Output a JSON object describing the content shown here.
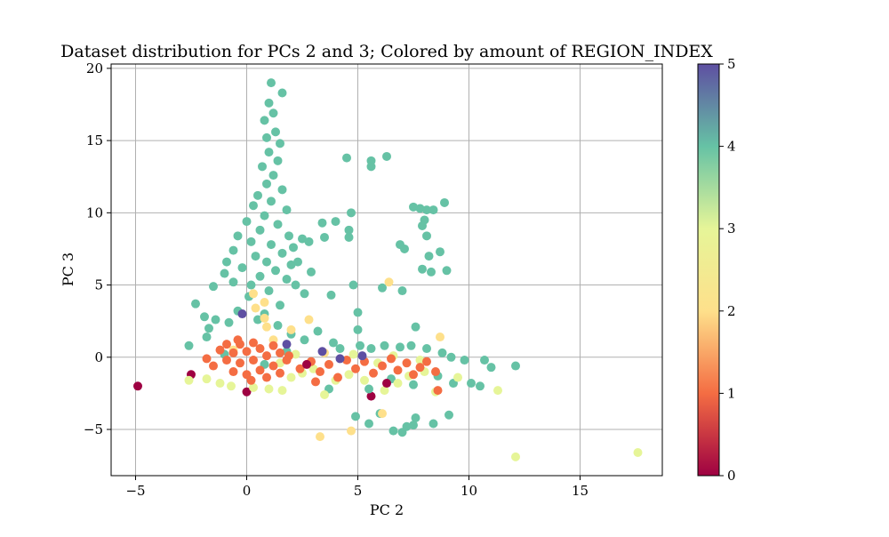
{
  "chart_data": {
    "type": "scatter",
    "title": "Dataset distribution for PCs 2 and 3; Colored by amount of REGION_INDEX",
    "xlabel": "PC 2",
    "ylabel": "PC 3",
    "xlim": [
      -6.1,
      18.7
    ],
    "ylim": [
      -8.2,
      20.3
    ],
    "xticks": [
      -5,
      0,
      5,
      10,
      15
    ],
    "yticks": [
      -5,
      0,
      5,
      10,
      15,
      20
    ],
    "grid": true,
    "colorbar": {
      "label": "",
      "range": [
        0,
        5
      ],
      "ticks": [
        0,
        1,
        2,
        3,
        4,
        5
      ],
      "colormap": "Spectral",
      "stops": [
        "#9e0142",
        "#f46d43",
        "#fee08b",
        "#e6f598",
        "#66c2a5",
        "#5e4fa2"
      ]
    },
    "points": [
      {
        "x": -4.9,
        "y": -2.0,
        "c": 0
      },
      {
        "x": 0.0,
        "y": -2.4,
        "c": 0
      },
      {
        "x": 5.6,
        "y": -2.7,
        "c": 0
      },
      {
        "x": -2.5,
        "y": -1.2,
        "c": 0
      },
      {
        "x": 1.1,
        "y": 19.0,
        "c": 4
      },
      {
        "x": 1.6,
        "y": 18.3,
        "c": 4
      },
      {
        "x": 1.0,
        "y": 17.6,
        "c": 4
      },
      {
        "x": 1.2,
        "y": 16.9,
        "c": 4
      },
      {
        "x": 0.8,
        "y": 16.4,
        "c": 4
      },
      {
        "x": 1.3,
        "y": 15.6,
        "c": 4
      },
      {
        "x": 0.9,
        "y": 15.2,
        "c": 4
      },
      {
        "x": 1.5,
        "y": 14.8,
        "c": 4
      },
      {
        "x": 1.0,
        "y": 14.2,
        "c": 4
      },
      {
        "x": 1.4,
        "y": 13.6,
        "c": 4
      },
      {
        "x": 0.7,
        "y": 13.2,
        "c": 4
      },
      {
        "x": 1.2,
        "y": 12.6,
        "c": 4
      },
      {
        "x": 0.9,
        "y": 12.0,
        "c": 4
      },
      {
        "x": 1.6,
        "y": 11.6,
        "c": 4
      },
      {
        "x": 0.5,
        "y": 11.2,
        "c": 4
      },
      {
        "x": 1.1,
        "y": 10.8,
        "c": 4
      },
      {
        "x": 0.3,
        "y": 10.5,
        "c": 4
      },
      {
        "x": 1.8,
        "y": 10.2,
        "c": 4
      },
      {
        "x": 0.8,
        "y": 9.8,
        "c": 4
      },
      {
        "x": 0.0,
        "y": 9.4,
        "c": 4
      },
      {
        "x": 1.4,
        "y": 9.2,
        "c": 4
      },
      {
        "x": 0.6,
        "y": 8.8,
        "c": 4
      },
      {
        "x": -0.4,
        "y": 8.4,
        "c": 4
      },
      {
        "x": 1.9,
        "y": 8.4,
        "c": 4
      },
      {
        "x": 0.2,
        "y": 8.0,
        "c": 4
      },
      {
        "x": 1.1,
        "y": 7.8,
        "c": 4
      },
      {
        "x": -0.6,
        "y": 7.4,
        "c": 4
      },
      {
        "x": 1.6,
        "y": 7.2,
        "c": 4
      },
      {
        "x": 0.4,
        "y": 7.0,
        "c": 4
      },
      {
        "x": -0.9,
        "y": 6.6,
        "c": 4
      },
      {
        "x": 0.9,
        "y": 6.6,
        "c": 4
      },
      {
        "x": 2.0,
        "y": 6.4,
        "c": 4
      },
      {
        "x": -0.2,
        "y": 6.2,
        "c": 4
      },
      {
        "x": 1.3,
        "y": 6.0,
        "c": 4
      },
      {
        "x": -1.0,
        "y": 5.8,
        "c": 4
      },
      {
        "x": 0.6,
        "y": 5.6,
        "c": 4
      },
      {
        "x": 1.8,
        "y": 5.4,
        "c": 4
      },
      {
        "x": -0.6,
        "y": 5.2,
        "c": 4
      },
      {
        "x": 0.2,
        "y": 5.0,
        "c": 4
      },
      {
        "x": 2.2,
        "y": 5.0,
        "c": 4
      },
      {
        "x": -1.5,
        "y": 4.9,
        "c": 4
      },
      {
        "x": 1.0,
        "y": 4.6,
        "c": 4
      },
      {
        "x": 2.6,
        "y": 4.4,
        "c": 4
      },
      {
        "x": 0.1,
        "y": 4.2,
        "c": 4
      },
      {
        "x": -2.3,
        "y": 3.7,
        "c": 4
      },
      {
        "x": 1.5,
        "y": 3.6,
        "c": 4
      },
      {
        "x": -0.4,
        "y": 3.2,
        "c": 4
      },
      {
        "x": 0.8,
        "y": 3.0,
        "c": 4
      },
      {
        "x": 2.5,
        "y": 8.2,
        "c": 4
      },
      {
        "x": 2.8,
        "y": 8.0,
        "c": 4
      },
      {
        "x": 2.1,
        "y": 7.6,
        "c": 4
      },
      {
        "x": 2.3,
        "y": 6.6,
        "c": 4
      },
      {
        "x": 2.9,
        "y": 5.9,
        "c": 4
      },
      {
        "x": 3.4,
        "y": 9.3,
        "c": 4
      },
      {
        "x": 4.0,
        "y": 9.4,
        "c": 4
      },
      {
        "x": 4.7,
        "y": 10.0,
        "c": 4
      },
      {
        "x": 3.5,
        "y": 8.3,
        "c": 4
      },
      {
        "x": 4.6,
        "y": 8.8,
        "c": 4
      },
      {
        "x": 4.6,
        "y": 8.3,
        "c": 4
      },
      {
        "x": 4.5,
        "y": 13.8,
        "c": 4
      },
      {
        "x": 5.6,
        "y": 13.6,
        "c": 4
      },
      {
        "x": 5.6,
        "y": 13.2,
        "c": 4
      },
      {
        "x": 6.3,
        "y": 13.9,
        "c": 4
      },
      {
        "x": 3.8,
        "y": 4.3,
        "c": 4
      },
      {
        "x": 4.8,
        "y": 5.0,
        "c": 4
      },
      {
        "x": 5.0,
        "y": 3.1,
        "c": 4
      },
      {
        "x": 6.1,
        "y": 4.8,
        "c": 4
      },
      {
        "x": 7.0,
        "y": 4.6,
        "c": 4
      },
      {
        "x": 7.5,
        "y": 10.4,
        "c": 4
      },
      {
        "x": 7.8,
        "y": 10.3,
        "c": 4
      },
      {
        "x": 8.1,
        "y": 10.2,
        "c": 4
      },
      {
        "x": 8.4,
        "y": 10.2,
        "c": 4
      },
      {
        "x": 8.9,
        "y": 10.7,
        "c": 4
      },
      {
        "x": 8.0,
        "y": 9.5,
        "c": 4
      },
      {
        "x": 7.9,
        "y": 9.1,
        "c": 4
      },
      {
        "x": 8.1,
        "y": 8.4,
        "c": 4
      },
      {
        "x": 6.9,
        "y": 7.8,
        "c": 4
      },
      {
        "x": 7.1,
        "y": 7.5,
        "c": 4
      },
      {
        "x": 8.7,
        "y": 7.3,
        "c": 4
      },
      {
        "x": 8.2,
        "y": 7.0,
        "c": 4
      },
      {
        "x": 7.9,
        "y": 6.1,
        "c": 4
      },
      {
        "x": 8.3,
        "y": 5.9,
        "c": 4
      },
      {
        "x": 9.0,
        "y": 6.0,
        "c": 4
      },
      {
        "x": -1.9,
        "y": 2.8,
        "c": 4
      },
      {
        "x": -1.4,
        "y": 2.6,
        "c": 4
      },
      {
        "x": -0.8,
        "y": 2.4,
        "c": 4
      },
      {
        "x": -1.7,
        "y": 2.0,
        "c": 4
      },
      {
        "x": -2.6,
        "y": 0.8,
        "c": 4
      },
      {
        "x": -1.8,
        "y": 1.4,
        "c": 4
      },
      {
        "x": 0.5,
        "y": 2.6,
        "c": 4
      },
      {
        "x": 1.4,
        "y": 2.2,
        "c": 4
      },
      {
        "x": 2.0,
        "y": 1.6,
        "c": 4
      },
      {
        "x": 2.6,
        "y": 1.2,
        "c": 4
      },
      {
        "x": 3.2,
        "y": 1.8,
        "c": 4
      },
      {
        "x": 3.9,
        "y": 1.0,
        "c": 4
      },
      {
        "x": 4.2,
        "y": 0.6,
        "c": 4
      },
      {
        "x": 5.0,
        "y": 1.9,
        "c": 4
      },
      {
        "x": 5.1,
        "y": 0.8,
        "c": 4
      },
      {
        "x": 5.6,
        "y": 0.6,
        "c": 4
      },
      {
        "x": 6.2,
        "y": 0.8,
        "c": 4
      },
      {
        "x": 6.9,
        "y": 0.7,
        "c": 4
      },
      {
        "x": 7.6,
        "y": 2.1,
        "c": 4
      },
      {
        "x": 7.4,
        "y": 0.8,
        "c": 4
      },
      {
        "x": 8.1,
        "y": 0.6,
        "c": 4
      },
      {
        "x": 8.8,
        "y": 0.3,
        "c": 4
      },
      {
        "x": 9.2,
        "y": 0.0,
        "c": 4
      },
      {
        "x": 9.8,
        "y": -0.2,
        "c": 4
      },
      {
        "x": 10.7,
        "y": -0.2,
        "c": 4
      },
      {
        "x": 11.0,
        "y": -0.7,
        "c": 4
      },
      {
        "x": 12.1,
        "y": -0.6,
        "c": 4
      },
      {
        "x": 10.1,
        "y": -1.8,
        "c": 4
      },
      {
        "x": 10.5,
        "y": -2.0,
        "c": 4
      },
      {
        "x": 9.3,
        "y": -1.8,
        "c": 4
      },
      {
        "x": 8.6,
        "y": -1.3,
        "c": 4
      },
      {
        "x": 7.5,
        "y": -1.9,
        "c": 4
      },
      {
        "x": 6.5,
        "y": -1.5,
        "c": 4
      },
      {
        "x": 5.5,
        "y": -2.2,
        "c": 4
      },
      {
        "x": 4.9,
        "y": -4.1,
        "c": 4
      },
      {
        "x": 5.5,
        "y": -4.6,
        "c": 4
      },
      {
        "x": 6.0,
        "y": -3.9,
        "c": 4
      },
      {
        "x": 6.6,
        "y": -5.1,
        "c": 4
      },
      {
        "x": 7.0,
        "y": -5.2,
        "c": 4
      },
      {
        "x": 7.2,
        "y": -4.8,
        "c": 4
      },
      {
        "x": 7.5,
        "y": -4.7,
        "c": 4
      },
      {
        "x": 7.6,
        "y": -4.2,
        "c": 4
      },
      {
        "x": 8.4,
        "y": -4.6,
        "c": 4
      },
      {
        "x": 9.1,
        "y": -4.0,
        "c": 4
      },
      {
        "x": 3.7,
        "y": -2.2,
        "c": 4
      },
      {
        "x": 0.8,
        "y": -0.5,
        "c": 4
      },
      {
        "x": -1.0,
        "y": 0.2,
        "c": 4
      },
      {
        "x": 1.8,
        "y": 0.4,
        "c": 4
      },
      {
        "x": 0.3,
        "y": 4.4,
        "c": 2
      },
      {
        "x": 0.8,
        "y": 3.8,
        "c": 2
      },
      {
        "x": 0.8,
        "y": 2.7,
        "c": 2
      },
      {
        "x": 0.9,
        "y": 2.1,
        "c": 2
      },
      {
        "x": 0.4,
        "y": 3.4,
        "c": 2
      },
      {
        "x": 6.4,
        "y": 5.2,
        "c": 2
      },
      {
        "x": 2.8,
        "y": 2.6,
        "c": 2
      },
      {
        "x": 2.0,
        "y": 1.9,
        "c": 2
      },
      {
        "x": 3.3,
        "y": -5.5,
        "c": 2
      },
      {
        "x": 4.7,
        "y": -5.1,
        "c": 2
      },
      {
        "x": 6.1,
        "y": -3.9,
        "c": 2
      },
      {
        "x": 8.7,
        "y": 1.4,
        "c": 2
      },
      {
        "x": 1.2,
        "y": 1.2,
        "c": 2
      },
      {
        "x": -0.6,
        "y": 0.5,
        "c": 2
      },
      {
        "x": 3.5,
        "y": 0.3,
        "c": 2
      },
      {
        "x": 17.6,
        "y": -6.6,
        "c": 3
      },
      {
        "x": 12.1,
        "y": -6.9,
        "c": 3
      },
      {
        "x": 11.3,
        "y": -2.3,
        "c": 3
      },
      {
        "x": -2.6,
        "y": -1.6,
        "c": 3
      },
      {
        "x": -1.8,
        "y": -1.5,
        "c": 3
      },
      {
        "x": -1.2,
        "y": -1.8,
        "c": 3
      },
      {
        "x": -0.7,
        "y": -2.0,
        "c": 3
      },
      {
        "x": 0.3,
        "y": -2.1,
        "c": 3
      },
      {
        "x": 1.0,
        "y": -2.2,
        "c": 3
      },
      {
        "x": 1.6,
        "y": -2.3,
        "c": 3
      },
      {
        "x": 2.0,
        "y": -1.4,
        "c": 3
      },
      {
        "x": 2.5,
        "y": -1.1,
        "c": 3
      },
      {
        "x": 3.0,
        "y": -0.8,
        "c": 3
      },
      {
        "x": 3.5,
        "y": -2.6,
        "c": 3
      },
      {
        "x": 4.0,
        "y": -1.6,
        "c": 3
      },
      {
        "x": 4.6,
        "y": -1.2,
        "c": 3
      },
      {
        "x": 5.3,
        "y": -1.6,
        "c": 3
      },
      {
        "x": 6.2,
        "y": -2.3,
        "c": 3
      },
      {
        "x": 6.8,
        "y": -1.8,
        "c": 3
      },
      {
        "x": 7.3,
        "y": -1.3,
        "c": 3
      },
      {
        "x": 8.0,
        "y": -1.0,
        "c": 3
      },
      {
        "x": 8.5,
        "y": -2.4,
        "c": 3
      },
      {
        "x": 9.5,
        "y": -1.4,
        "c": 3
      },
      {
        "x": 2.2,
        "y": 0.2,
        "c": 3
      },
      {
        "x": 1.5,
        "y": -0.4,
        "c": 3
      },
      {
        "x": 4.8,
        "y": 0.2,
        "c": 3
      },
      {
        "x": 6.6,
        "y": 0.1,
        "c": 3
      },
      {
        "x": 5.9,
        "y": -0.4,
        "c": 3
      },
      {
        "x": 7.8,
        "y": -0.2,
        "c": 3
      },
      {
        "x": -1.5,
        "y": -0.6,
        "c": 1
      },
      {
        "x": -1.2,
        "y": 0.5,
        "c": 1
      },
      {
        "x": -0.9,
        "y": -0.2,
        "c": 1
      },
      {
        "x": -0.9,
        "y": 0.9,
        "c": 1
      },
      {
        "x": -0.6,
        "y": 0.3,
        "c": 1
      },
      {
        "x": -0.6,
        "y": -1.0,
        "c": 1
      },
      {
        "x": -0.3,
        "y": 0.9,
        "c": 1
      },
      {
        "x": -0.3,
        "y": -0.4,
        "c": 1
      },
      {
        "x": 0.0,
        "y": 0.4,
        "c": 1
      },
      {
        "x": 0.0,
        "y": -1.2,
        "c": 1
      },
      {
        "x": 0.3,
        "y": 1.0,
        "c": 1
      },
      {
        "x": 0.3,
        "y": -0.2,
        "c": 1
      },
      {
        "x": 0.6,
        "y": 0.6,
        "c": 1
      },
      {
        "x": 0.6,
        "y": -0.9,
        "c": 1
      },
      {
        "x": 0.9,
        "y": 0.1,
        "c": 1
      },
      {
        "x": 0.9,
        "y": -1.4,
        "c": 1
      },
      {
        "x": 1.2,
        "y": 0.8,
        "c": 1
      },
      {
        "x": 1.2,
        "y": -0.6,
        "c": 1
      },
      {
        "x": 1.5,
        "y": 0.3,
        "c": 1
      },
      {
        "x": 1.5,
        "y": -1.1,
        "c": 1
      },
      {
        "x": -0.4,
        "y": 1.2,
        "c": 1
      },
      {
        "x": 0.2,
        "y": -1.6,
        "c": 1
      },
      {
        "x": -1.8,
        "y": -0.1,
        "c": 1
      },
      {
        "x": 1.8,
        "y": -0.2,
        "c": 1
      },
      {
        "x": 2.4,
        "y": -0.8,
        "c": 1
      },
      {
        "x": 2.9,
        "y": -0.3,
        "c": 1
      },
      {
        "x": 3.3,
        "y": -1.0,
        "c": 1
      },
      {
        "x": 3.7,
        "y": -0.5,
        "c": 1
      },
      {
        "x": 4.1,
        "y": -1.4,
        "c": 1
      },
      {
        "x": 4.5,
        "y": -0.2,
        "c": 1
      },
      {
        "x": 4.9,
        "y": -0.8,
        "c": 1
      },
      {
        "x": 5.3,
        "y": -0.3,
        "c": 1
      },
      {
        "x": 5.7,
        "y": -1.1,
        "c": 1
      },
      {
        "x": 6.1,
        "y": -0.6,
        "c": 1
      },
      {
        "x": 6.5,
        "y": -0.1,
        "c": 1
      },
      {
        "x": 6.8,
        "y": -0.9,
        "c": 1
      },
      {
        "x": 7.2,
        "y": -0.4,
        "c": 1
      },
      {
        "x": 7.5,
        "y": -1.2,
        "c": 1
      },
      {
        "x": 7.8,
        "y": -0.7,
        "c": 1
      },
      {
        "x": 8.1,
        "y": -0.3,
        "c": 1
      },
      {
        "x": 8.5,
        "y": -1.0,
        "c": 1
      },
      {
        "x": 8.6,
        "y": -2.3,
        "c": 1
      },
      {
        "x": 3.1,
        "y": -1.7,
        "c": 1
      },
      {
        "x": 1.9,
        "y": 0.1,
        "c": 1
      },
      {
        "x": -0.2,
        "y": 3.0,
        "c": 5
      },
      {
        "x": 1.8,
        "y": 0.9,
        "c": 5
      },
      {
        "x": 3.4,
        "y": 0.4,
        "c": 5
      },
      {
        "x": 4.2,
        "y": -0.1,
        "c": 5
      },
      {
        "x": 5.2,
        "y": 0.1,
        "c": 5
      },
      {
        "x": 2.7,
        "y": -0.5,
        "c": 0
      },
      {
        "x": 6.3,
        "y": -1.8,
        "c": 0
      }
    ]
  }
}
